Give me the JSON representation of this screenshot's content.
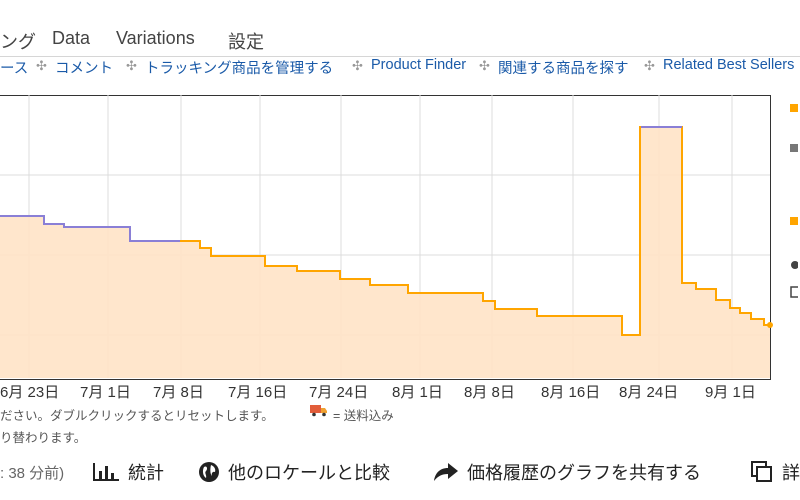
{
  "tabs": [
    "ング",
    "Data",
    "Variations",
    "設定"
  ],
  "links": [
    "ース",
    "コメント",
    "トラッキング商品を管理する",
    "Product Finder",
    "関連する商品を探す",
    "Related Best Sellers"
  ],
  "link_separator": "✣",
  "chart_data": {
    "type": "line",
    "x_tick_labels": [
      "6月 23日",
      "7月 1日",
      "7月 8日",
      "7月 16日",
      "7月 24日",
      "8月 1日",
      "8月 8日",
      "8月 16日",
      "8月 24日",
      "9月 1日"
    ],
    "series": [
      {
        "color": "#ffa500",
        "fill": "#ffe3c6"
      },
      {
        "color": "#8a7fd6"
      }
    ],
    "grid": true
  },
  "notes": {
    "line1": "ださい。ダブルクリックするとリセットします。",
    "shipping_icon": "truck-icon",
    "shipping": "= 送料込み",
    "line2": "り替わります。"
  },
  "bottom_bar": {
    "updated": ": 38 分前)",
    "stats": "統計",
    "compare_locales": "他のロケールと比較",
    "share": "価格履歴のグラフを共有する",
    "more": "詳"
  }
}
